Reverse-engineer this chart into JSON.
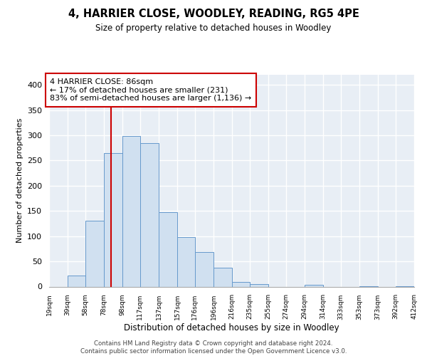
{
  "title": "4, HARRIER CLOSE, WOODLEY, READING, RG5 4PE",
  "subtitle": "Size of property relative to detached houses in Woodley",
  "xlabel": "Distribution of detached houses by size in Woodley",
  "ylabel": "Number of detached properties",
  "bar_color": "#d0e0f0",
  "bar_edge_color": "#6699cc",
  "background_color": "#e8eef5",
  "vline_color": "#cc0000",
  "footer": "Contains HM Land Registry data © Crown copyright and database right 2024.\nContains public sector information licensed under the Open Government Licence v3.0.",
  "annotation_line1": "4 HARRIER CLOSE: 86sqm",
  "annotation_line2": "← 17% of detached houses are smaller (231)",
  "annotation_line3": "83% of semi-detached houses are larger (1,136) →",
  "bins": [
    19,
    39,
    58,
    78,
    98,
    117,
    137,
    157,
    176,
    196,
    216,
    235,
    255,
    274,
    294,
    314,
    333,
    353,
    373,
    392,
    412
  ],
  "bin_labels": [
    "19sqm",
    "39sqm",
    "58sqm",
    "78sqm",
    "98sqm",
    "117sqm",
    "137sqm",
    "157sqm",
    "176sqm",
    "196sqm",
    "216sqm",
    "235sqm",
    "255sqm",
    "274sqm",
    "294sqm",
    "314sqm",
    "333sqm",
    "353sqm",
    "373sqm",
    "392sqm",
    "412sqm"
  ],
  "bar_heights": [
    0,
    22,
    130,
    265,
    298,
    284,
    147,
    98,
    68,
    37,
    9,
    5,
    0,
    0,
    3,
    0,
    0,
    1,
    0,
    1
  ],
  "vline_x": 86,
  "ylim": [
    0,
    420
  ],
  "yticks": [
    0,
    50,
    100,
    150,
    200,
    250,
    300,
    350,
    400
  ]
}
